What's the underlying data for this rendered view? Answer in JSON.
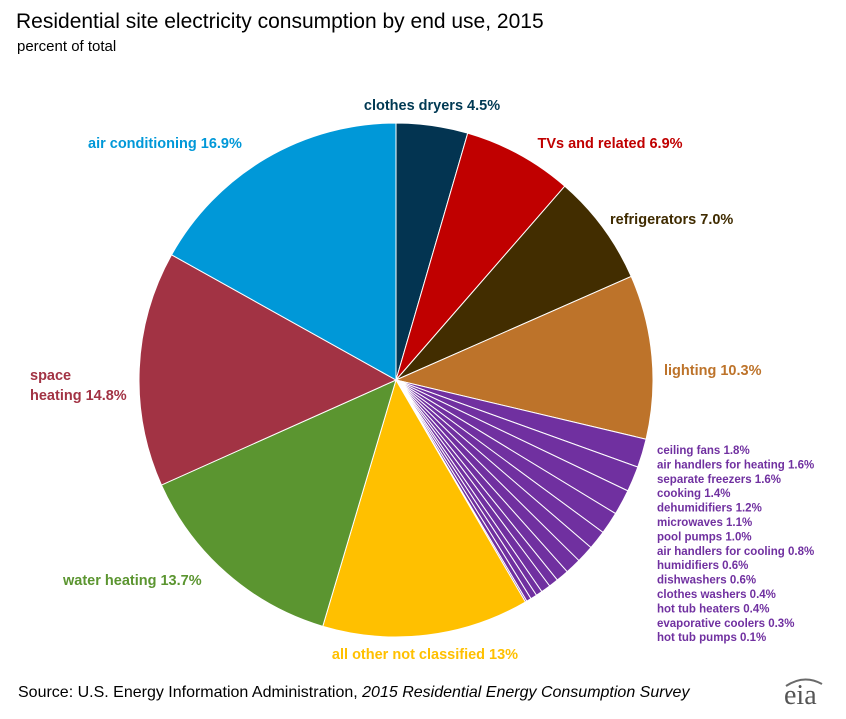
{
  "header": {
    "title": "Residential site electricity consumption by end use, 2015",
    "subtitle": "percent of total"
  },
  "footer": {
    "source_prefix": "Source: U.S. Energy Information Administration, ",
    "source_title": "2015 Residential Energy Consumption Survey",
    "logo_text": "eia"
  },
  "chart_data": {
    "type": "pie",
    "title": "Residential site electricity consumption by end use, 2015",
    "subtitle": "percent of total",
    "start": "top",
    "direction": "clockwise",
    "legend": "none",
    "slices": [
      {
        "label": "clothes dryers",
        "value": 4.5,
        "text": "clothes dryers  4.5%",
        "color": "#033451",
        "label_color": "#003953"
      },
      {
        "label": "TVs and related",
        "value": 6.9,
        "text": "TVs and related  6.9%",
        "color": "#C00000",
        "label_color": "#C00000"
      },
      {
        "label": "refrigerators",
        "value": 7.0,
        "text": "refrigerators  7.0%",
        "color": "#422D00",
        "label_color": "#3F2B00"
      },
      {
        "label": "lighting",
        "value": 10.3,
        "text": "lighting  10.3%",
        "color": "#BD732A",
        "label_color": "#BD732A"
      },
      {
        "label": "ceiling fans",
        "value": 1.8,
        "text": "ceiling fans  1.8%",
        "color": "#7030A0",
        "label_color": "#7030A0"
      },
      {
        "label": "air handlers for heating",
        "value": 1.6,
        "text": "air handlers for heating  1.6%",
        "color": "#7030A0",
        "label_color": "#7030A0"
      },
      {
        "label": "separate freezers",
        "value": 1.6,
        "text": "separate freezers  1.6%",
        "color": "#7030A0",
        "label_color": "#7030A0"
      },
      {
        "label": "cooking",
        "value": 1.4,
        "text": "cooking  1.4%",
        "color": "#7030A0",
        "label_color": "#7030A0"
      },
      {
        "label": "dehumidifiers",
        "value": 1.2,
        "text": "dehumidifiers  1.2%",
        "color": "#7030A0",
        "label_color": "#7030A0"
      },
      {
        "label": "microwaves",
        "value": 1.1,
        "text": "microwaves  1.1%",
        "color": "#7030A0",
        "label_color": "#7030A0"
      },
      {
        "label": "pool pumps",
        "value": 1.0,
        "text": "pool pumps  1.0%",
        "color": "#7030A0",
        "label_color": "#7030A0"
      },
      {
        "label": "air handlers for cooling",
        "value": 0.8,
        "text": "air handlers for cooling  0.8%",
        "color": "#7030A0",
        "label_color": "#7030A0"
      },
      {
        "label": "humidifiers",
        "value": 0.6,
        "text": "humidifiers  0.6%",
        "color": "#7030A0",
        "label_color": "#7030A0"
      },
      {
        "label": "dishwashers",
        "value": 0.6,
        "text": "dishwashers  0.6%",
        "color": "#7030A0",
        "label_color": "#7030A0"
      },
      {
        "label": "clothes washers",
        "value": 0.4,
        "text": "clothes washers  0.4%",
        "color": "#7030A0",
        "label_color": "#7030A0"
      },
      {
        "label": "hot tub heaters",
        "value": 0.4,
        "text": "hot tub heaters  0.4%",
        "color": "#7030A0",
        "label_color": "#7030A0"
      },
      {
        "label": "evaporative coolers",
        "value": 0.3,
        "text": "evaporative coolers  0.3%",
        "color": "#7030A0",
        "label_color": "#7030A0"
      },
      {
        "label": "hot tub pumps",
        "value": 0.1,
        "text": "hot tub pumps  0.1%",
        "color": "#7030A0",
        "label_color": "#7030A0"
      },
      {
        "label": "all other not classified",
        "value": 13,
        "text": "all other not classified  13%",
        "color": "#FFC000",
        "label_color": "#FFC000"
      },
      {
        "label": "water heating",
        "value": 13.7,
        "text": "water heating  13.7%",
        "color": "#5B9530",
        "label_color": "#5B9530"
      },
      {
        "label": "space heating",
        "value": 14.8,
        "text_lines": [
          "space",
          "heating 14.8%"
        ],
        "color": "#A23344",
        "label_color": "#A23344"
      },
      {
        "label": "air conditioning",
        "value": 16.9,
        "text": "air conditioning  16.9%",
        "color": "#0098D8",
        "label_color": "#0098D8"
      }
    ]
  }
}
